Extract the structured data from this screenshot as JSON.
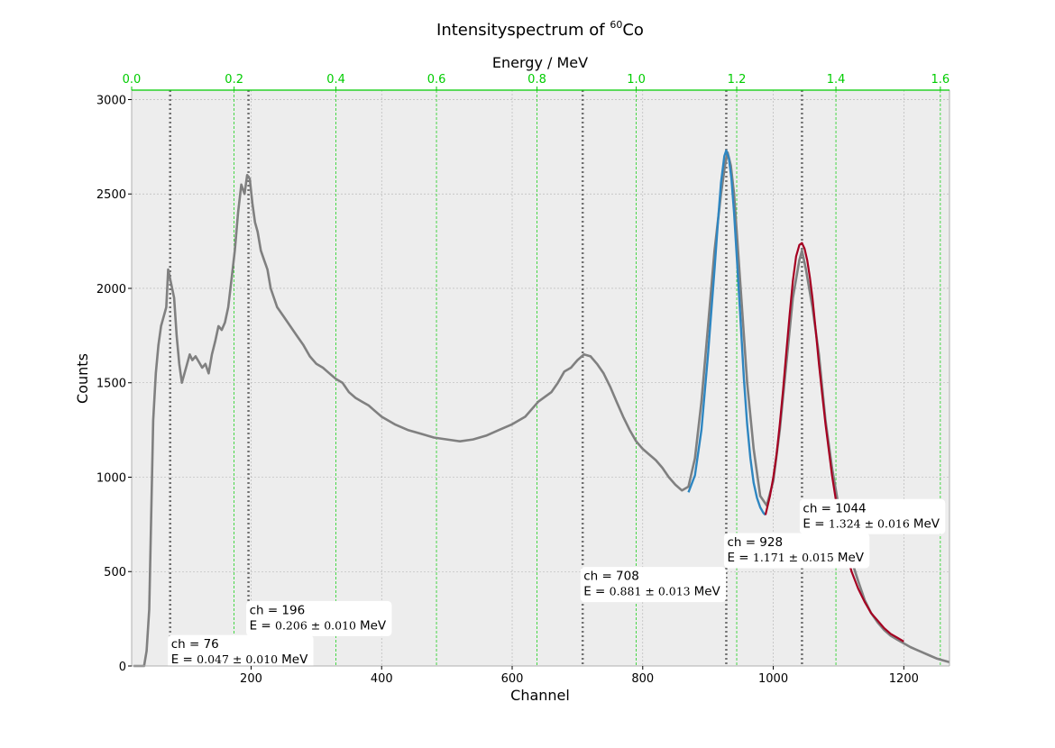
{
  "chart_data": {
    "type": "line",
    "title_prefix": "Intensityspectrum of ",
    "title_sup": "60",
    "title_suffix": "Co",
    "xlabel": "Channel",
    "ylabel": "Counts",
    "top_xlabel": "Energy / MeV",
    "xlim": [
      17,
      1270
    ],
    "ylim": [
      0,
      3050
    ],
    "x_ticks": [
      200,
      400,
      600,
      800,
      1000,
      1200
    ],
    "y_ticks": [
      0,
      500,
      1000,
      1500,
      2000,
      2500,
      3000
    ],
    "top_ticks": [
      "0.0",
      "0.2",
      "0.4",
      "0.6",
      "0.8",
      "1.0",
      "1.2",
      "1.4",
      "1.6"
    ],
    "grid": true,
    "colors": {
      "spectrum": "#808080",
      "fit_1": "#2e86c1",
      "fit_2": "#a50021",
      "energy_axis": "#00cc00",
      "peak_lines": "#707070",
      "background": "#ededed"
    },
    "series": [
      {
        "x": [
          20,
          30,
          36,
          40,
          44,
          50,
          54,
          58,
          62,
          66,
          70,
          73,
          76,
          79,
          82,
          86,
          90,
          94,
          98,
          102,
          106,
          110,
          115,
          120,
          125,
          130,
          135,
          140,
          145,
          150,
          155,
          160,
          165,
          170,
          175,
          180,
          185,
          190,
          194,
          198,
          202,
          206,
          210,
          215,
          220,
          225,
          230,
          235,
          240,
          250,
          260,
          270,
          280,
          290,
          300,
          310,
          320,
          330,
          340,
          350,
          360,
          370,
          380,
          390,
          400,
          420,
          440,
          460,
          480,
          500,
          520,
          540,
          560,
          580,
          600,
          620,
          640,
          660,
          670,
          680,
          690,
          700,
          710,
          720,
          730,
          740,
          750,
          760,
          770,
          780,
          790,
          800,
          810,
          820,
          830,
          840,
          850,
          860,
          870,
          880,
          890,
          900,
          910,
          920,
          926,
          930,
          935,
          940,
          950,
          960,
          970,
          980,
          990,
          1000,
          1010,
          1020,
          1030,
          1040,
          1044,
          1050,
          1060,
          1070,
          1080,
          1090,
          1100,
          1110,
          1120,
          1130,
          1140,
          1150,
          1160,
          1170,
          1180,
          1190,
          1200,
          1210,
          1220,
          1230,
          1240,
          1250,
          1260,
          1270
        ],
        "y": [
          0,
          0,
          0,
          80,
          300,
          1300,
          1550,
          1700,
          1800,
          1850,
          1900,
          2100,
          2050,
          2000,
          1950,
          1750,
          1600,
          1500,
          1550,
          1600,
          1650,
          1620,
          1640,
          1610,
          1580,
          1600,
          1550,
          1650,
          1720,
          1800,
          1780,
          1820,
          1900,
          2050,
          2200,
          2400,
          2550,
          2500,
          2600,
          2580,
          2450,
          2350,
          2300,
          2200,
          2150,
          2100,
          2000,
          1950,
          1900,
          1850,
          1800,
          1750,
          1700,
          1640,
          1600,
          1580,
          1550,
          1520,
          1500,
          1450,
          1420,
          1400,
          1380,
          1350,
          1320,
          1280,
          1250,
          1230,
          1210,
          1200,
          1190,
          1200,
          1220,
          1250,
          1280,
          1320,
          1400,
          1450,
          1500,
          1560,
          1580,
          1620,
          1650,
          1640,
          1600,
          1550,
          1480,
          1400,
          1320,
          1250,
          1190,
          1150,
          1120,
          1090,
          1050,
          1000,
          960,
          930,
          950,
          1100,
          1400,
          1800,
          2200,
          2500,
          2650,
          2720,
          2650,
          2500,
          2000,
          1500,
          1150,
          900,
          850,
          980,
          1250,
          1600,
          1950,
          2150,
          2200,
          2100,
          1900,
          1650,
          1300,
          1050,
          850,
          680,
          560,
          450,
          350,
          280,
          230,
          190,
          160,
          140,
          120,
          100,
          85,
          70,
          55,
          40,
          30,
          20
        ]
      },
      {
        "x": [
          870,
          880,
          890,
          900,
          910,
          915,
          920,
          925,
          928,
          932,
          936,
          940,
          945,
          950,
          955,
          960,
          965,
          970,
          975,
          980,
          985,
          988
        ],
        "y": [
          920,
          1010,
          1250,
          1650,
          2100,
          2340,
          2560,
          2700,
          2730,
          2690,
          2580,
          2400,
          2120,
          1820,
          1520,
          1280,
          1100,
          970,
          890,
          840,
          810,
          800
        ]
      },
      {
        "x": [
          988,
          995,
          1000,
          1005,
          1010,
          1015,
          1020,
          1025,
          1030,
          1035,
          1040,
          1044,
          1048,
          1052,
          1056,
          1060,
          1065,
          1070,
          1075,
          1080,
          1090,
          1100,
          1110,
          1120,
          1130,
          1140,
          1150,
          1160,
          1170,
          1180,
          1190,
          1200
        ],
        "y": [
          800,
          900,
          1000,
          1120,
          1280,
          1460,
          1660,
          1860,
          2040,
          2170,
          2230,
          2240,
          2210,
          2150,
          2060,
          1950,
          1780,
          1600,
          1440,
          1280,
          1010,
          790,
          620,
          500,
          410,
          340,
          280,
          240,
          200,
          170,
          150,
          130
        ]
      }
    ],
    "peaks": [
      {
        "ch": 76,
        "label": "ch = 76",
        "energy": "0.047 ± 0.010",
        "unit": "MeV",
        "label_y": 95
      },
      {
        "ch": 196,
        "label": "ch = 196",
        "energy": "0.206 ± 0.010",
        "unit": "MeV",
        "label_y": 275
      },
      {
        "ch": 708,
        "label": "ch = 708",
        "energy": "0.881 ± 0.013",
        "unit": "MeV",
        "label_y": 455
      },
      {
        "ch": 928,
        "label": "ch = 928",
        "energy": "1.171 ± 0.015",
        "unit": "MeV",
        "label_y": 635
      },
      {
        "ch": 1044,
        "label": "ch = 1044",
        "energy": "1.324 ± 0.016",
        "unit": "MeV",
        "label_y": 815
      }
    ],
    "energy_gridlines_channel": [
      17,
      174,
      330,
      484,
      638,
      790,
      944,
      1096,
      1256
    ]
  }
}
